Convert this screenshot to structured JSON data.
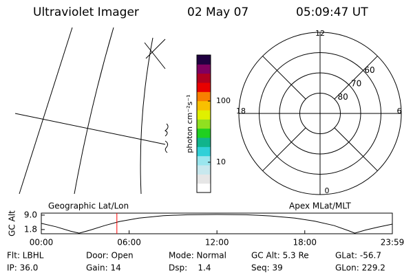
{
  "header": {
    "title": "Ultraviolet Imager",
    "date": "02 May 07",
    "time": "05:09:47 UT"
  },
  "colorbar": {
    "label": "photon cm⁻²s⁻¹",
    "log": true,
    "clim": [
      3.2,
      566
    ],
    "ticks": [
      10,
      100
    ],
    "colors": [
      "#ffffff",
      "#e6e6e6",
      "#c8e8ee",
      "#9ae6ee",
      "#30d0d8",
      "#10b48c",
      "#20d020",
      "#90e020",
      "#e0f000",
      "#f8c000",
      "#f88000",
      "#e80000",
      "#b00020",
      "#800060",
      "#200040"
    ]
  },
  "polar": {
    "rlim": [
      90,
      50
    ],
    "rticks": [
      80,
      70,
      60
    ],
    "mlt_ticks": [
      12,
      18,
      0,
      6
    ]
  },
  "altitude": {
    "title": "Geographic Lat/Lon",
    "title_right": "Apex MLat/MLT",
    "ylabel": "GC Alt",
    "xlim": [
      0,
      1439
    ],
    "ylim": [
      -0.3,
      10
    ],
    "yticks": [
      {
        "value": 9,
        "label": "9.0"
      },
      {
        "value": 1.8,
        "label": "1.8"
      }
    ],
    "xticks": [
      {
        "value": 0,
        "label": "00:00"
      },
      {
        "value": 360,
        "label": "06:00"
      },
      {
        "value": 720,
        "label": "12:00"
      },
      {
        "value": 1080,
        "label": "18:00"
      },
      {
        "value": 1439,
        "label": "23:59"
      }
    ],
    "x": [
      0,
      60,
      120,
      155,
      200,
      260,
      320,
      400,
      500,
      600,
      720,
      840,
      940,
      1040,
      1120,
      1200,
      1260,
      1285,
      1330,
      1380,
      1439
    ],
    "values": [
      4.9,
      3.2,
      1.0,
      0,
      1.5,
      3.8,
      5.8,
      7.5,
      8.7,
      9.2,
      9.3,
      9.2,
      8.6,
      7.5,
      6.0,
      3.8,
      1.2,
      0,
      1.6,
      3.0,
      4.5
    ],
    "current": 309.8,
    "current_color": "#ff0000"
  },
  "info": [
    [
      "Flt: LBHL",
      "Door: Open",
      "Mode: Normal",
      "GC Alt: 5.3 Re",
      "GLat: -56.7"
    ],
    [
      "IP: 36.0",
      "Gain: 14",
      "Dsp:    1.4",
      "Seq: 39",
      "GLon: 229.2"
    ]
  ]
}
